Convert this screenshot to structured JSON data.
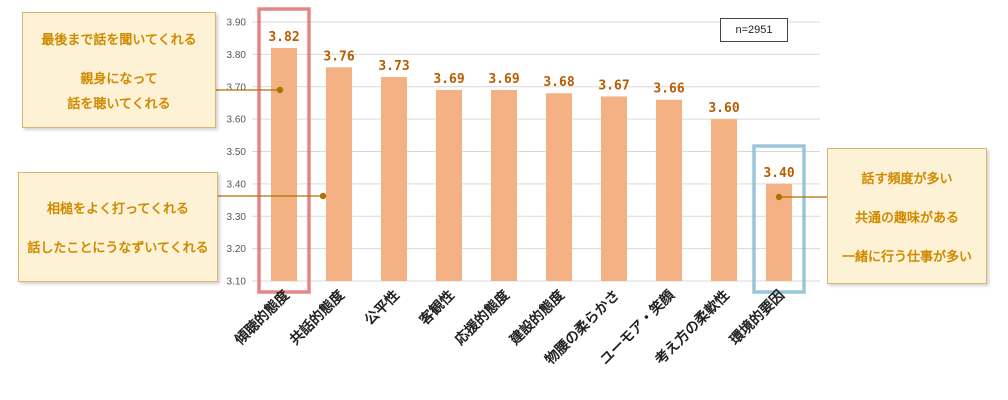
{
  "chart_data": {
    "type": "bar",
    "categories": [
      "傾聴的態度",
      "共話的態度",
      "公平性",
      "客観性",
      "応援的態度",
      "建設的態度",
      "物腰の柔らかさ",
      "ユーモア・笑顔",
      "考え方の柔軟性",
      "環境的要因"
    ],
    "values": [
      3.82,
      3.76,
      3.73,
      3.69,
      3.69,
      3.68,
      3.67,
      3.66,
      3.6,
      3.4
    ],
    "data_labels": [
      "3.82",
      "3.76",
      "3.73",
      "3.69",
      "3.69",
      "3.68",
      "3.67",
      "3.66",
      "3.60",
      "3.40"
    ],
    "y_ticks": [
      "3.10",
      "3.20",
      "3.30",
      "3.40",
      "3.50",
      "3.60",
      "3.70",
      "3.80",
      "3.90"
    ],
    "ylim": [
      3.1,
      3.9
    ],
    "grid": true,
    "bar_color": "#f4b183",
    "label_color": "#b85c00",
    "highlight_colors": {
      "first": "#e07070",
      "last": "#8fbfd6"
    }
  },
  "sample_note": "n=2951",
  "callouts": {
    "top": {
      "line1": "最後まで話を聞いてくれる",
      "line2": "親身になって",
      "line3": "話を聴いてくれる"
    },
    "mid": {
      "line1": "相槌をよく打ってくれる",
      "line2": "話したことにうなずいてくれる"
    },
    "right": {
      "line1": "話す頻度が多い",
      "line2": "共通の趣味がある",
      "line3": "一緒に行う仕事が多い"
    }
  },
  "colors": {
    "callout_bg": "#fdf2d6",
    "callout_text": "#d08a00",
    "connector": "#b07000"
  }
}
